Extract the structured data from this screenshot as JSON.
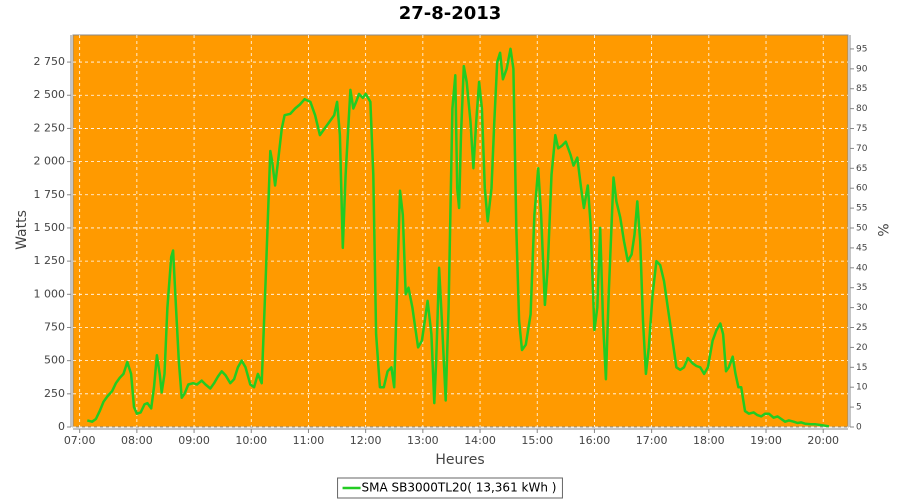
{
  "chart_data": {
    "type": "line",
    "title": "27-8-2013",
    "x_label": "Heures",
    "y_label": "Watts",
    "y2_label": "%",
    "background": "#ff9a00",
    "grid": true,
    "legend": "bottom",
    "xlim": [
      "06:53",
      "20:26"
    ],
    "xticks": [
      "07:00",
      "08:00",
      "09:00",
      "10:00",
      "11:00",
      "12:00",
      "13:00",
      "14:00",
      "15:00",
      "16:00",
      "17:00",
      "18:00",
      "19:00",
      "20:00"
    ],
    "ylim": [
      0,
      2954
    ],
    "yticks": [
      0,
      250,
      500,
      750,
      {
        "value": 1000,
        "label": "1 000"
      },
      {
        "value": 1250,
        "label": "1 250"
      },
      {
        "value": 1500,
        "label": "1 500"
      },
      {
        "value": 1750,
        "label": "1 750"
      },
      {
        "value": 2000,
        "label": "2 000"
      },
      {
        "value": 2250,
        "label": "2 250"
      },
      {
        "value": 2500,
        "label": "2 500"
      },
      {
        "value": 2750,
        "label": "2 750"
      }
    ],
    "y2lim": [
      0,
      98.5
    ],
    "y2ticks": [
      0,
      5,
      10,
      15,
      20,
      25,
      30,
      35,
      40,
      45,
      50,
      55,
      60,
      65,
      70,
      75,
      80,
      85,
      90,
      95
    ],
    "x": [
      "07:08",
      "07:13",
      "07:17",
      "07:21",
      "07:25",
      "07:29",
      "07:34",
      "07:38",
      "07:42",
      "07:46",
      "07:50",
      "07:54",
      "07:57",
      "08:00",
      "08:04",
      "08:08",
      "08:11",
      "08:15",
      "08:18",
      "08:21",
      "08:24",
      "08:26",
      "08:29",
      "08:32",
      "08:36",
      "08:38",
      "08:41",
      "08:44",
      "08:47",
      "08:50",
      "08:54",
      "08:59",
      "09:03",
      "09:08",
      "09:12",
      "09:17",
      "09:21",
      "09:25",
      "09:29",
      "09:33",
      "09:38",
      "09:42",
      "09:46",
      "09:50",
      "09:54",
      "09:59",
      "10:03",
      "10:07",
      "10:11",
      "10:15",
      "10:20",
      "10:22",
      "10:25",
      "10:28",
      "10:32",
      "10:35",
      "10:41",
      "10:46",
      "10:51",
      "10:56",
      "11:02",
      "11:07",
      "11:12",
      "11:17",
      "11:23",
      "11:27",
      "11:30",
      "11:33",
      "11:36",
      "11:39",
      "11:44",
      "11:47",
      "11:50",
      "11:53",
      "11:57",
      "12:00",
      "12:05",
      "12:08",
      "12:11",
      "12:15",
      "12:19",
      "12:23",
      "12:27",
      "12:30",
      "12:34",
      "12:36",
      "12:39",
      "12:42",
      "12:45",
      "12:49",
      "12:52",
      "12:55",
      "12:59",
      "13:02",
      "13:05",
      "13:09",
      "13:12",
      "13:14",
      "13:17",
      "13:20",
      "13:24",
      "13:27",
      "13:31",
      "13:34",
      "13:36",
      "13:38",
      "13:40",
      "13:43",
      "13:46",
      "13:50",
      "13:53",
      "13:56",
      "13:59",
      "14:02",
      "14:05",
      "14:08",
      "14:12",
      "14:15",
      "14:18",
      "14:21",
      "14:24",
      "14:28",
      "14:32",
      "14:35",
      "14:38",
      "14:41",
      "14:44",
      "14:48",
      "14:53",
      "14:57",
      "15:01",
      "15:04",
      "15:08",
      "15:11",
      "15:15",
      "15:19",
      "15:22",
      "15:26",
      "15:30",
      "15:35",
      "15:38",
      "15:42",
      "15:46",
      "15:49",
      "15:53",
      "15:56",
      "16:00",
      "16:03",
      "16:06",
      "16:09",
      "16:12",
      "16:15",
      "16:20",
      "16:23",
      "16:27",
      "16:31",
      "16:35",
      "16:39",
      "16:42",
      "16:45",
      "16:48",
      "16:51",
      "16:54",
      "16:57",
      "17:01",
      "17:05",
      "17:09",
      "17:13",
      "17:17",
      "17:22",
      "17:26",
      "17:30",
      "17:34",
      "17:38",
      "17:43",
      "17:47",
      "17:51",
      "17:55",
      "17:59",
      "18:04",
      "18:08",
      "18:12",
      "18:15",
      "18:18",
      "18:21",
      "18:25",
      "18:28",
      "18:31",
      "18:34",
      "18:38",
      "18:42",
      "18:47",
      "18:51",
      "18:55",
      "18:59",
      "19:03",
      "19:08",
      "19:12",
      "19:16",
      "19:20",
      "19:24",
      "19:29",
      "19:33",
      "19:37",
      "19:41",
      "19:47",
      "19:52",
      "19:57",
      "20:02",
      "20:06"
    ],
    "series": [
      {
        "name": "SMA SB3000TL20( 13,361 kWh )",
        "color": "#22cc22",
        "values": [
          50,
          40,
          60,
          120,
          190,
          230,
          270,
          330,
          370,
          400,
          490,
          400,
          150,
          100,
          110,
          170,
          180,
          140,
          300,
          540,
          400,
          260,
          400,
          900,
          1280,
          1330,
          900,
          500,
          220,
          250,
          320,
          330,
          320,
          350,
          320,
          290,
          330,
          380,
          420,
          390,
          330,
          360,
          450,
          500,
          450,
          320,
          300,
          400,
          330,
          1100,
          2080,
          2000,
          1820,
          2000,
          2250,
          2350,
          2360,
          2400,
          2430,
          2470,
          2450,
          2350,
          2200,
          2250,
          2310,
          2350,
          2450,
          2200,
          1350,
          1900,
          2540,
          2400,
          2450,
          2510,
          2480,
          2510,
          2450,
          1900,
          700,
          300,
          300,
          420,
          450,
          300,
          1300,
          1780,
          1600,
          1000,
          1050,
          900,
          750,
          600,
          650,
          800,
          950,
          700,
          180,
          500,
          1200,
          800,
          200,
          900,
          2400,
          2650,
          1800,
          1650,
          2200,
          2720,
          2600,
          2300,
          1950,
          2300,
          2600,
          2400,
          1800,
          1550,
          1800,
          2300,
          2750,
          2820,
          2620,
          2700,
          2850,
          2700,
          1500,
          800,
          580,
          620,
          850,
          1600,
          1950,
          1600,
          920,
          1200,
          1900,
          2200,
          2100,
          2120,
          2150,
          2050,
          1970,
          2030,
          1800,
          1650,
          1820,
          1530,
          730,
          900,
          1500,
          800,
          360,
          1000,
          1880,
          1700,
          1580,
          1400,
          1250,
          1300,
          1450,
          1700,
          1400,
          800,
          400,
          600,
          1000,
          1250,
          1220,
          1100,
          900,
          650,
          450,
          430,
          450,
          520,
          480,
          460,
          450,
          400,
          450,
          650,
          730,
          780,
          700,
          420,
          450,
          530,
          400,
          300,
          300,
          120,
          100,
          110,
          90,
          80,
          100,
          100,
          70,
          80,
          60,
          40,
          50,
          40,
          30,
          35,
          25,
          20,
          20,
          15,
          10,
          5
        ]
      }
    ]
  }
}
